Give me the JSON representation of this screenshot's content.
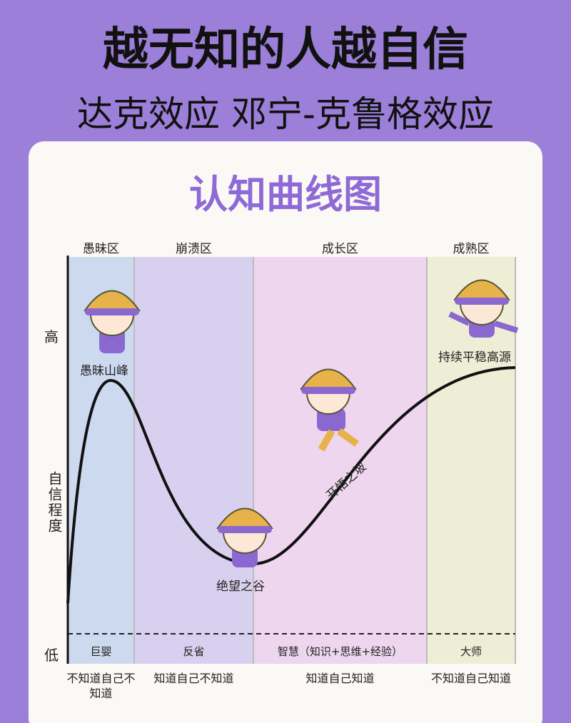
{
  "header": {
    "title": "越无知的人越自信",
    "subtitle": "达克效应 邓宁-克鲁格效应"
  },
  "card": {
    "title": "认知曲线图",
    "axis": {
      "high": "高",
      "label": "自信程度",
      "low": "低"
    },
    "zones": [
      {
        "name": "愚昧区",
        "level": "巨婴",
        "description": "不知道自己不知道"
      },
      {
        "name": "崩溃区",
        "level": "反省",
        "description": "知道自己不知道"
      },
      {
        "name": "成长区",
        "level": "智慧（知识+思维+经验）",
        "description": "知道自己知道"
      },
      {
        "name": "成熟区",
        "level": "大师",
        "description": "不知道自己知道"
      }
    ],
    "stages": {
      "peak": "愚昧山峰",
      "valley": "绝望之谷",
      "slope": "开悟之坡",
      "plateau": "持续平稳高源"
    }
  }
}
